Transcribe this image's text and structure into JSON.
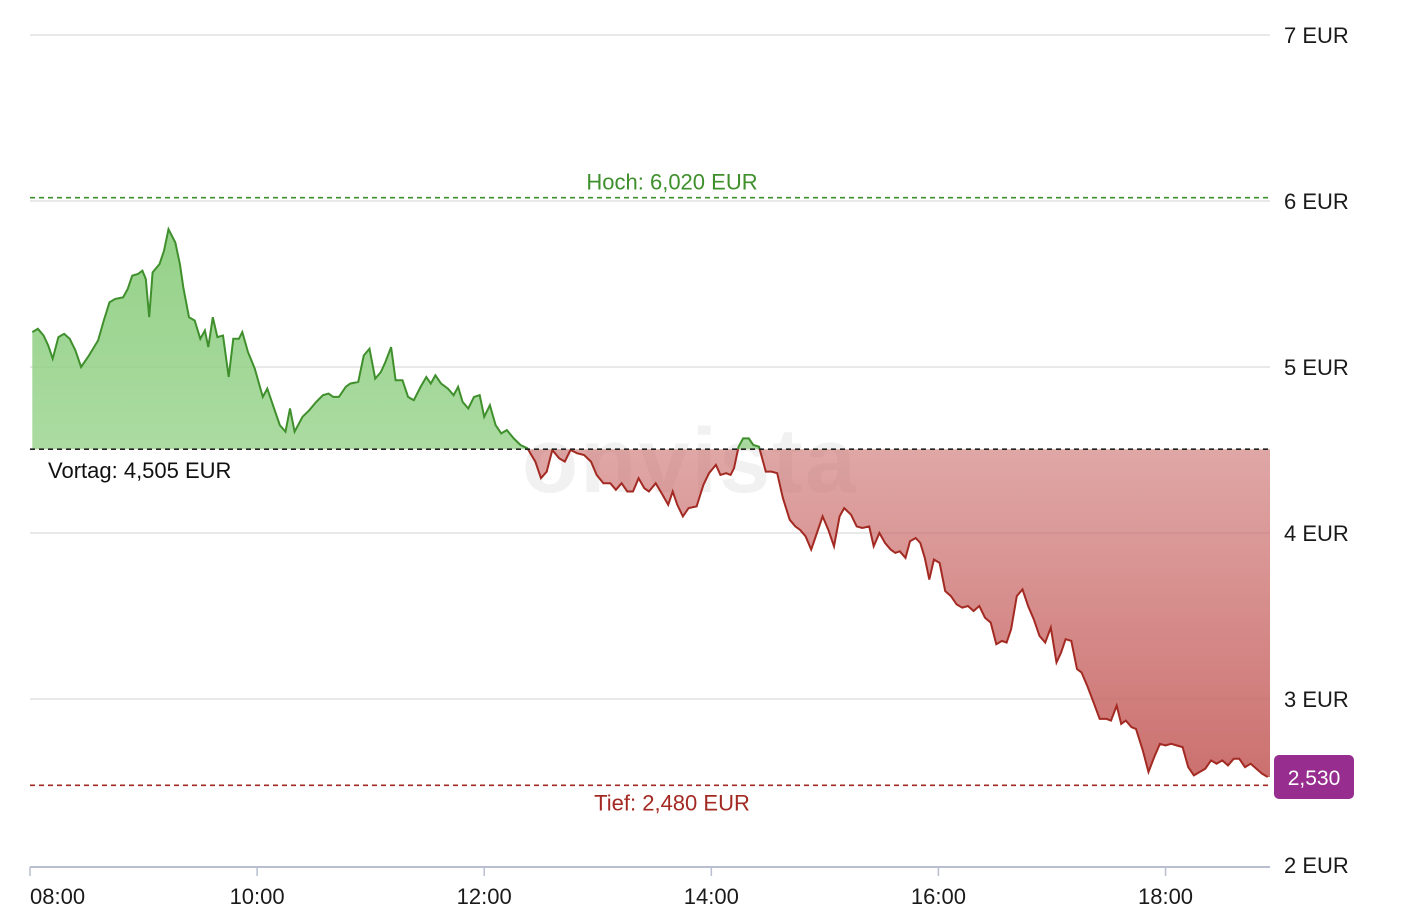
{
  "watermark": "onvista",
  "colors": {
    "up_line": "#3f8f2c",
    "up_fill": "#8fcf82",
    "down_line": "#a32a23",
    "down_fill": "#c96a68",
    "high": "#3f8f2c",
    "low": "#a32a23",
    "badge": "#962d8f",
    "grid": "#e2e2e2",
    "axis": "#b9bfd0"
  },
  "chart_data": {
    "type": "area",
    "y_ticks": [
      {
        "value": 7,
        "label": "7 EUR"
      },
      {
        "value": 6,
        "label": "6 EUR"
      },
      {
        "value": 5,
        "label": "5 EUR"
      },
      {
        "value": 4,
        "label": "4 EUR"
      },
      {
        "value": 3,
        "label": "3 EUR"
      },
      {
        "value": 2,
        "label": "2 EUR"
      }
    ],
    "x_ticks": [
      {
        "value": 8,
        "label": "08:00"
      },
      {
        "value": 10,
        "label": "10:00"
      },
      {
        "value": 12,
        "label": "12:00"
      },
      {
        "value": 14,
        "label": "14:00"
      },
      {
        "value": 16,
        "label": "16:00"
      },
      {
        "value": 18,
        "label": "18:00"
      }
    ],
    "x_range": [
      8.0,
      18.92
    ],
    "y_range": [
      2.0,
      7.0
    ],
    "grid": true,
    "reference_lines": {
      "high": {
        "value": 6.02,
        "label": "Hoch: 6,020 EUR"
      },
      "previous": {
        "value": 4.505,
        "label": "Vortag: 4,505 EUR"
      },
      "low": {
        "value": 2.48,
        "label": "Tief: 2,480 EUR"
      }
    },
    "last_value": {
      "value": 2.53,
      "label": "2,530"
    },
    "series": [
      {
        "points": [
          [
            8.02,
            5.21
          ],
          [
            8.07,
            5.23
          ],
          [
            8.12,
            5.19
          ],
          [
            8.16,
            5.13
          ],
          [
            8.2,
            5.05
          ],
          [
            8.25,
            5.18
          ],
          [
            8.3,
            5.2
          ],
          [
            8.35,
            5.17
          ],
          [
            8.4,
            5.1
          ],
          [
            8.45,
            5.0
          ],
          [
            8.52,
            5.07
          ],
          [
            8.6,
            5.16
          ],
          [
            8.65,
            5.28
          ],
          [
            8.7,
            5.39
          ],
          [
            8.75,
            5.41
          ],
          [
            8.82,
            5.42
          ],
          [
            8.86,
            5.47
          ],
          [
            8.9,
            5.55
          ],
          [
            8.95,
            5.56
          ],
          [
            8.99,
            5.58
          ],
          [
            9.02,
            5.53
          ],
          [
            9.05,
            5.3
          ],
          [
            9.08,
            5.57
          ],
          [
            9.14,
            5.62
          ],
          [
            9.18,
            5.7
          ],
          [
            9.22,
            5.83
          ],
          [
            9.28,
            5.75
          ],
          [
            9.32,
            5.62
          ],
          [
            9.35,
            5.48
          ],
          [
            9.4,
            5.3
          ],
          [
            9.45,
            5.28
          ],
          [
            9.5,
            5.17
          ],
          [
            9.54,
            5.22
          ],
          [
            9.57,
            5.12
          ],
          [
            9.61,
            5.3
          ],
          [
            9.65,
            5.18
          ],
          [
            9.7,
            5.19
          ],
          [
            9.75,
            4.94
          ],
          [
            9.79,
            5.17
          ],
          [
            9.84,
            5.17
          ],
          [
            9.87,
            5.21
          ],
          [
            9.92,
            5.09
          ],
          [
            9.98,
            4.99
          ],
          [
            10.05,
            4.82
          ],
          [
            10.09,
            4.87
          ],
          [
            10.15,
            4.75
          ],
          [
            10.2,
            4.65
          ],
          [
            10.25,
            4.61
          ],
          [
            10.29,
            4.75
          ],
          [
            10.33,
            4.61
          ],
          [
            10.4,
            4.7
          ],
          [
            10.46,
            4.74
          ],
          [
            10.52,
            4.79
          ],
          [
            10.58,
            4.83
          ],
          [
            10.63,
            4.84
          ],
          [
            10.67,
            4.82
          ],
          [
            10.72,
            4.82
          ],
          [
            10.78,
            4.88
          ],
          [
            10.82,
            4.9
          ],
          [
            10.89,
            4.91
          ],
          [
            10.94,
            5.07
          ],
          [
            10.99,
            5.11
          ],
          [
            11.04,
            4.93
          ],
          [
            11.09,
            4.97
          ],
          [
            11.13,
            5.03
          ],
          [
            11.18,
            5.12
          ],
          [
            11.22,
            4.92
          ],
          [
            11.28,
            4.92
          ],
          [
            11.33,
            4.82
          ],
          [
            11.38,
            4.8
          ],
          [
            11.44,
            4.88
          ],
          [
            11.49,
            4.94
          ],
          [
            11.53,
            4.9
          ],
          [
            11.57,
            4.95
          ],
          [
            11.62,
            4.9
          ],
          [
            11.68,
            4.87
          ],
          [
            11.73,
            4.83
          ],
          [
            11.77,
            4.88
          ],
          [
            11.81,
            4.79
          ],
          [
            11.86,
            4.75
          ],
          [
            11.91,
            4.82
          ],
          [
            11.96,
            4.83
          ],
          [
            12.0,
            4.7
          ],
          [
            12.05,
            4.77
          ],
          [
            12.1,
            4.65
          ],
          [
            12.15,
            4.6
          ],
          [
            12.2,
            4.62
          ],
          [
            12.26,
            4.57
          ],
          [
            12.32,
            4.53
          ],
          [
            12.38,
            4.51
          ],
          [
            12.45,
            4.43
          ],
          [
            12.5,
            4.33
          ],
          [
            12.55,
            4.37
          ],
          [
            12.6,
            4.5
          ],
          [
            12.66,
            4.45
          ],
          [
            12.71,
            4.43
          ],
          [
            12.76,
            4.5
          ],
          [
            12.82,
            4.48
          ],
          [
            12.88,
            4.47
          ],
          [
            12.94,
            4.43
          ],
          [
            12.99,
            4.35
          ],
          [
            13.05,
            4.3
          ],
          [
            13.11,
            4.3
          ],
          [
            13.16,
            4.26
          ],
          [
            13.21,
            4.3
          ],
          [
            13.26,
            4.25
          ],
          [
            13.31,
            4.25
          ],
          [
            13.36,
            4.33
          ],
          [
            13.41,
            4.27
          ],
          [
            13.45,
            4.25
          ],
          [
            13.51,
            4.3
          ],
          [
            13.57,
            4.23
          ],
          [
            13.62,
            4.17
          ],
          [
            13.66,
            4.25
          ],
          [
            13.7,
            4.17
          ],
          [
            13.75,
            4.1
          ],
          [
            13.8,
            4.15
          ],
          [
            13.87,
            4.16
          ],
          [
            13.93,
            4.29
          ],
          [
            13.98,
            4.36
          ],
          [
            14.04,
            4.41
          ],
          [
            14.08,
            4.35
          ],
          [
            14.13,
            4.36
          ],
          [
            14.17,
            4.35
          ],
          [
            14.2,
            4.39
          ],
          [
            14.24,
            4.52
          ],
          [
            14.28,
            4.57
          ],
          [
            14.33,
            4.57
          ],
          [
            14.37,
            4.53
          ],
          [
            14.42,
            4.52
          ],
          [
            14.48,
            4.37
          ],
          [
            14.53,
            4.37
          ],
          [
            14.58,
            4.36
          ],
          [
            14.63,
            4.21
          ],
          [
            14.69,
            4.08
          ],
          [
            14.74,
            4.04
          ],
          [
            14.78,
            4.02
          ],
          [
            14.83,
            3.98
          ],
          [
            14.88,
            3.9
          ],
          [
            14.93,
            4.0
          ],
          [
            14.98,
            4.1
          ],
          [
            15.03,
            4.02
          ],
          [
            15.08,
            3.92
          ],
          [
            15.13,
            4.1
          ],
          [
            15.17,
            4.15
          ],
          [
            15.23,
            4.11
          ],
          [
            15.28,
            4.04
          ],
          [
            15.33,
            4.03
          ],
          [
            15.39,
            4.04
          ],
          [
            15.43,
            3.92
          ],
          [
            15.48,
            4.0
          ],
          [
            15.53,
            3.94
          ],
          [
            15.58,
            3.9
          ],
          [
            15.62,
            3.88
          ],
          [
            15.66,
            3.89
          ],
          [
            15.71,
            3.85
          ],
          [
            15.75,
            3.95
          ],
          [
            15.8,
            3.97
          ],
          [
            15.84,
            3.94
          ],
          [
            15.88,
            3.85
          ],
          [
            15.92,
            3.72
          ],
          [
            15.96,
            3.84
          ],
          [
            16.01,
            3.82
          ],
          [
            16.06,
            3.65
          ],
          [
            16.11,
            3.62
          ],
          [
            16.16,
            3.57
          ],
          [
            16.21,
            3.55
          ],
          [
            16.26,
            3.56
          ],
          [
            16.31,
            3.53
          ],
          [
            16.36,
            3.56
          ],
          [
            16.41,
            3.49
          ],
          [
            16.46,
            3.46
          ],
          [
            16.51,
            3.33
          ],
          [
            16.56,
            3.35
          ],
          [
            16.6,
            3.34
          ],
          [
            16.64,
            3.42
          ],
          [
            16.69,
            3.62
          ],
          [
            16.74,
            3.66
          ],
          [
            16.79,
            3.56
          ],
          [
            16.84,
            3.48
          ],
          [
            16.89,
            3.38
          ],
          [
            16.94,
            3.34
          ],
          [
            16.99,
            3.43
          ],
          [
            17.04,
            3.22
          ],
          [
            17.08,
            3.28
          ],
          [
            17.12,
            3.36
          ],
          [
            17.17,
            3.35
          ],
          [
            17.22,
            3.18
          ],
          [
            17.26,
            3.16
          ],
          [
            17.31,
            3.08
          ],
          [
            17.36,
            2.99
          ],
          [
            17.42,
            2.88
          ],
          [
            17.48,
            2.88
          ],
          [
            17.52,
            2.87
          ],
          [
            17.57,
            2.96
          ],
          [
            17.61,
            2.85
          ],
          [
            17.65,
            2.87
          ],
          [
            17.7,
            2.83
          ],
          [
            17.74,
            2.82
          ],
          [
            17.8,
            2.69
          ],
          [
            17.85,
            2.56
          ],
          [
            17.9,
            2.65
          ],
          [
            17.95,
            2.73
          ],
          [
            18.0,
            2.72
          ],
          [
            18.05,
            2.73
          ],
          [
            18.1,
            2.72
          ],
          [
            18.15,
            2.71
          ],
          [
            18.2,
            2.59
          ],
          [
            18.25,
            2.54
          ],
          [
            18.3,
            2.56
          ],
          [
            18.35,
            2.58
          ],
          [
            18.4,
            2.63
          ],
          [
            18.45,
            2.61
          ],
          [
            18.5,
            2.63
          ],
          [
            18.55,
            2.6
          ],
          [
            18.6,
            2.64
          ],
          [
            18.65,
            2.64
          ],
          [
            18.7,
            2.59
          ],
          [
            18.75,
            2.61
          ],
          [
            18.8,
            2.58
          ],
          [
            18.85,
            2.55
          ],
          [
            18.9,
            2.53
          ]
        ]
      }
    ]
  }
}
